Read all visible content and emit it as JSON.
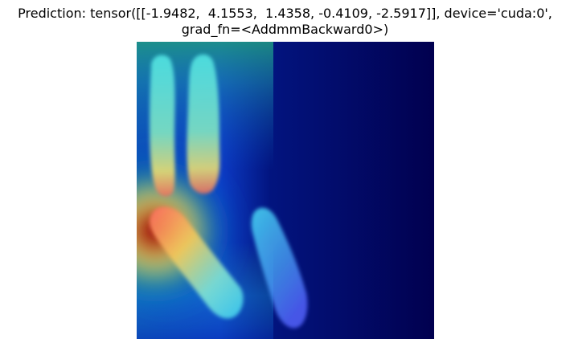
{
  "figure": {
    "title_line_1": "Prediction: tensor([[-1.9482,  4.1553,  1.4358, -0.4109, -2.5917]], device='cuda:0',",
    "title_line_2": "grad_fn=<AddmmBackward0>)"
  },
  "image": {
    "description_icon": "heatmap-overlay-image",
    "colormap": "jet",
    "colors": {
      "deep_blue": "#01004f",
      "blue": "#0018c8",
      "cyan": "#33f0ff",
      "green": "#2fae7d",
      "yellow": "#f3e455",
      "red": "#c11b0c",
      "dark_red": "#7a0000"
    }
  }
}
